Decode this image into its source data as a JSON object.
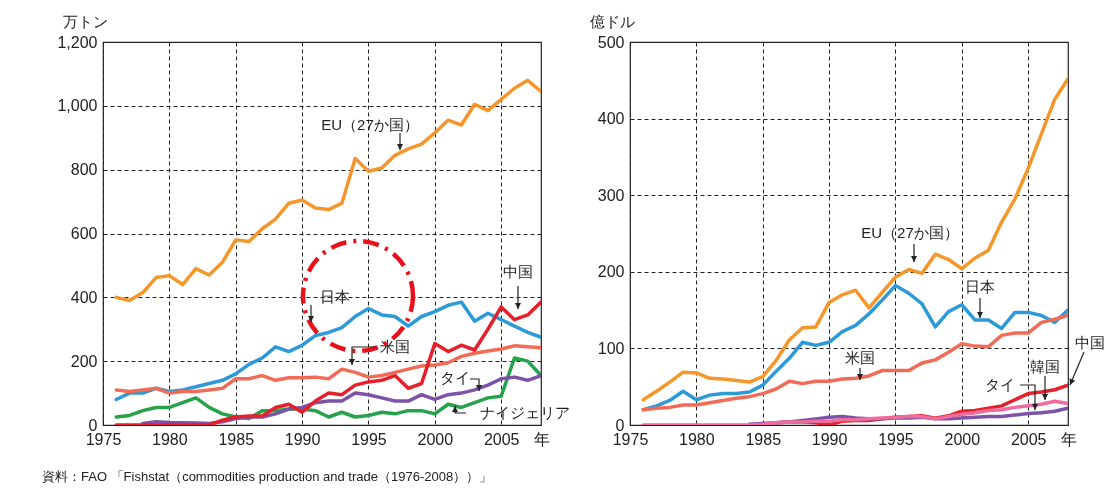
{
  "chart_data": [
    {
      "type": "line",
      "ylabel": "万トン",
      "xlabel": "年",
      "xlim": [
        1975,
        2008
      ],
      "xticks": [
        1975,
        1980,
        1985,
        1990,
        1995,
        2000,
        2005
      ],
      "ylim": [
        0,
        1200
      ],
      "yticks": [
        0,
        200,
        400,
        600,
        800,
        {
          "value": 1000,
          "label": "1,000"
        },
        {
          "value": 1200,
          "label": "1,200"
        }
      ],
      "grid": true,
      "x": [
        1976,
        1977,
        1978,
        1979,
        1980,
        1981,
        1982,
        1983,
        1984,
        1985,
        1986,
        1987,
        1988,
        1989,
        1990,
        1991,
        1992,
        1993,
        1994,
        1995,
        1996,
        1997,
        1998,
        1999,
        2000,
        2001,
        2002,
        2003,
        2004,
        2005,
        2006,
        2007,
        2008
      ],
      "series": [
        {
          "name": "EU（27か国）",
          "color": "#f5962a",
          "values": [
            400,
            390,
            415,
            462,
            468,
            440,
            490,
            470,
            510,
            580,
            575,
            615,
            645,
            695,
            705,
            680,
            675,
            695,
            835,
            795,
            805,
            845,
            865,
            880,
            915,
            955,
            940,
            1005,
            985,
            1020,
            1055,
            1080,
            1045
          ]
        },
        {
          "name": "日本",
          "color": "#2c9ad8",
          "values": [
            80,
            100,
            100,
            115,
            105,
            110,
            120,
            130,
            140,
            160,
            190,
            210,
            245,
            230,
            250,
            280,
            290,
            305,
            340,
            365,
            345,
            340,
            310,
            340,
            355,
            375,
            385,
            325,
            350,
            330,
            310,
            290,
            275
          ]
        },
        {
          "name": "米国",
          "color": "#f26b57",
          "values": [
            110,
            105,
            110,
            115,
            100,
            105,
            105,
            110,
            115,
            145,
            145,
            155,
            140,
            148,
            148,
            150,
            145,
            175,
            165,
            150,
            155,
            165,
            175,
            185,
            188,
            195,
            215,
            225,
            232,
            238,
            248,
            245,
            242
          ]
        },
        {
          "name": "ナイジェリア",
          "color": "#26a24b",
          "values": [
            25,
            30,
            45,
            55,
            55,
            70,
            85,
            55,
            35,
            25,
            20,
            45,
            45,
            50,
            50,
            45,
            25,
            40,
            25,
            30,
            40,
            35,
            45,
            45,
            35,
            65,
            55,
            70,
            85,
            90,
            210,
            200,
            155
          ]
        },
        {
          "name": "タイ",
          "color": "#7d52a8",
          "values": [
            null,
            null,
            5,
            10,
            8,
            7,
            6,
            5,
            10,
            20,
            25,
            25,
            35,
            50,
            55,
            70,
            75,
            75,
            100,
            95,
            85,
            75,
            75,
            95,
            80,
            95,
            100,
            110,
            125,
            145,
            150,
            140,
            155
          ]
        },
        {
          "name": "中国",
          "color": "#e5202b",
          "values": [
            0,
            0,
            0,
            0,
            0,
            0,
            0,
            0,
            15,
            25,
            28,
            28,
            55,
            65,
            40,
            75,
            100,
            95,
            125,
            135,
            140,
            155,
            115,
            130,
            255,
            230,
            250,
            235,
            300,
            370,
            330,
            345,
            385
          ]
        }
      ],
      "annotations": [
        "資料：FAO 「Fishstat（commodities production and trade（1976-2008））」"
      ]
    },
    {
      "type": "line",
      "ylabel": "億ドル",
      "xlabel": "年",
      "xlim": [
        1975,
        2008
      ],
      "xticks": [
        1975,
        1980,
        1985,
        1990,
        1995,
        2000,
        2005
      ],
      "ylim": [
        0,
        500
      ],
      "yticks": [
        0,
        100,
        200,
        300,
        400,
        500
      ],
      "grid": true,
      "x": [
        1976,
        1977,
        1978,
        1979,
        1980,
        1981,
        1982,
        1983,
        1984,
        1985,
        1986,
        1987,
        1988,
        1989,
        1990,
        1991,
        1992,
        1993,
        1994,
        1995,
        1996,
        1997,
        1998,
        1999,
        2000,
        2001,
        2002,
        2003,
        2004,
        2005,
        2006,
        2007,
        2008
      ],
      "series": [
        {
          "name": "EU（27か国）",
          "color": "#f5962a",
          "values": [
            33,
            44,
            56,
            69,
            68,
            61,
            60,
            58,
            56,
            63,
            84,
            111,
            127,
            128,
            160,
            170,
            176,
            153,
            173,
            193,
            203,
            198,
            223,
            216,
            204,
            218,
            228,
            265,
            295,
            335,
            380,
            425,
            452
          ]
        },
        {
          "name": "日本",
          "color": "#2c9ad8",
          "values": [
            20,
            25,
            32,
            44,
            33,
            39,
            41,
            41,
            43,
            52,
            70,
            87,
            108,
            104,
            108,
            122,
            130,
            145,
            163,
            182,
            172,
            158,
            128,
            148,
            157,
            137,
            137,
            126,
            147,
            147,
            143,
            134,
            150
          ]
        },
        {
          "name": "米国",
          "color": "#f26b57",
          "values": [
            20,
            22,
            23,
            26,
            26,
            29,
            32,
            35,
            37,
            41,
            47,
            57,
            54,
            57,
            57,
            60,
            61,
            64,
            71,
            71,
            71,
            81,
            85,
            95,
            106,
            103,
            102,
            117,
            120,
            120,
            134,
            138,
            143
          ]
        },
        {
          "name": "中国",
          "color": "#e5202b",
          "values": [
            null,
            null,
            null,
            null,
            null,
            null,
            null,
            null,
            null,
            null,
            3,
            4,
            4,
            3,
            0,
            5,
            6,
            6,
            8,
            10,
            11,
            12,
            9,
            12,
            18,
            19,
            22,
            25,
            33,
            41,
            43,
            46,
            52
          ]
        },
        {
          "name": "タイ",
          "color": "#7d52a8",
          "values": [
            null,
            null,
            null,
            null,
            null,
            null,
            null,
            null,
            1,
            2,
            3,
            4,
            6,
            8,
            10,
            11,
            9,
            8,
            8,
            9,
            9,
            10,
            8,
            8,
            9,
            10,
            11,
            11,
            13,
            15,
            16,
            18,
            22
          ]
        },
        {
          "name": "韓国",
          "color": "#ee6b9c",
          "values": [
            0,
            0,
            0,
            0,
            0,
            0,
            0,
            0,
            0,
            1,
            3,
            4,
            4,
            5,
            5,
            7,
            7,
            8,
            9,
            10,
            11,
            11,
            8,
            11,
            14,
            16,
            19,
            20,
            23,
            25,
            27,
            31,
            28
          ]
        }
      ]
    }
  ]
}
